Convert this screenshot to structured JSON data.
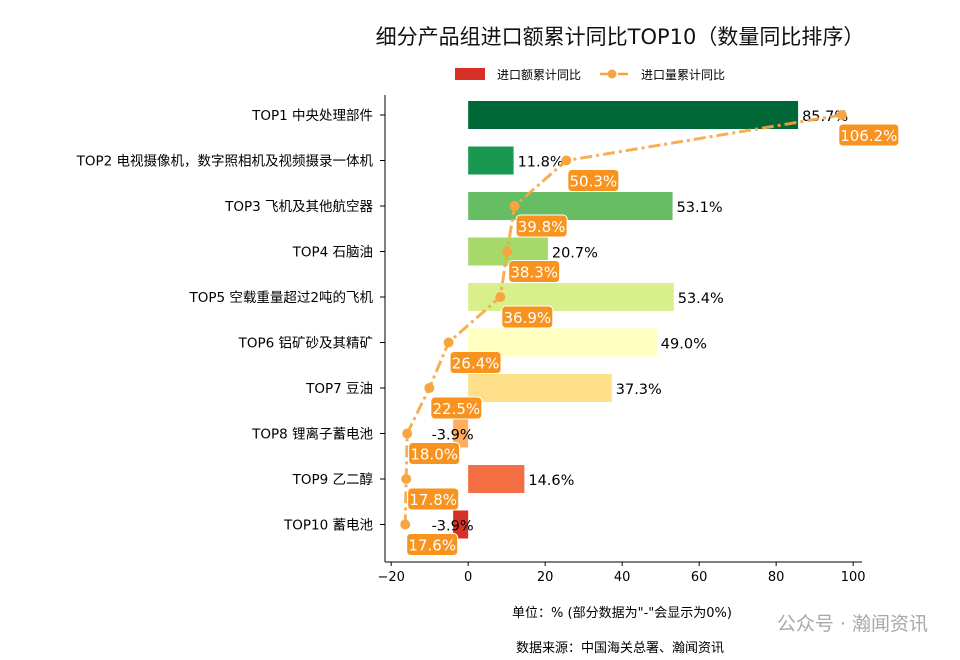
{
  "chart_data": {
    "type": "bar",
    "title": "细分产品组进口额累计同比TOP10（数量同比排序）",
    "categories": [
      "TOP1 中央处理部件",
      "TOP2 电视摄像机，数字照相机及视频摄录一体机",
      "TOP3 飞机及其他航空器",
      "TOP4 石脑油",
      "TOP5 空载重量超过2吨的飞机",
      "TOP6 铝矿砂及其精矿",
      "TOP7 豆油",
      "TOP8 锂离子蓄电池",
      "TOP9 乙二醇",
      "TOP10 蓄电池"
    ],
    "series": [
      {
        "name": "进口额累计同比",
        "type": "bar",
        "values": [
          85.7,
          11.8,
          53.1,
          20.7,
          53.4,
          49.0,
          37.3,
          -3.9,
          14.6,
          -3.9
        ],
        "labels": [
          "85.7%",
          "11.8%",
          "53.1%",
          "20.7%",
          "53.4%",
          "49.0%",
          "37.3%",
          "-3.9%",
          "14.6%",
          "-3.9%"
        ],
        "colors": [
          "#006837",
          "#1a9850",
          "#66bd63",
          "#a6d96a",
          "#d9ef8b",
          "#ffffbf",
          "#fee08b",
          "#fdae61",
          "#f46d43",
          "#d73027"
        ]
      },
      {
        "name": "进口量累计同比",
        "type": "line",
        "values": [
          106.2,
          50.3,
          39.8,
          38.3,
          36.9,
          26.4,
          22.5,
          18.0,
          17.8,
          17.6
        ],
        "labels": [
          "106.2%",
          "50.3%",
          "39.8%",
          "38.3%",
          "36.9%",
          "26.4%",
          "22.5%",
          "18.0%",
          "17.8%",
          "17.6%"
        ],
        "color": "#f7a541",
        "label_color": "#f7931e"
      }
    ],
    "xlim": [
      -21.6,
      102.3
    ],
    "secondary_xlim": [
      13.5,
      110.3
    ],
    "xticks": [
      -20,
      0,
      20,
      40,
      60,
      80,
      100
    ],
    "xlabel": "单位：%  (部分数据为\"-\"会显示为0%)",
    "source": "数据来源：中国海关总署、瀚闻资讯",
    "legend": "top-center",
    "grid": false
  },
  "watermark": "公众号 · 瀚闻资讯"
}
